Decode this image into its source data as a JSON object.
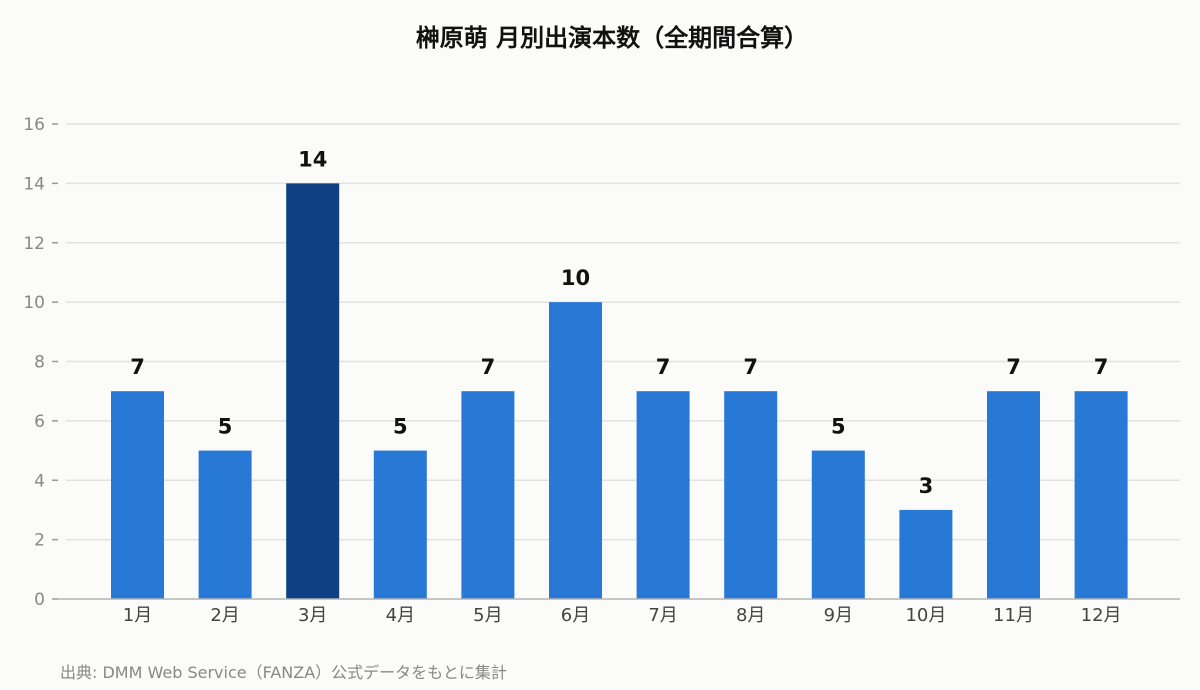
{
  "chart_data": {
    "type": "bar",
    "title": "榊原萌 月別出演本数（全期間合算）",
    "categories": [
      "1月",
      "2月",
      "3月",
      "4月",
      "5月",
      "6月",
      "7月",
      "8月",
      "9月",
      "10月",
      "11月",
      "12月"
    ],
    "values": [
      7,
      5,
      14,
      5,
      7,
      10,
      7,
      7,
      5,
      3,
      7,
      7
    ],
    "ylim": [
      0,
      16
    ],
    "yticks": [
      0,
      2,
      4,
      6,
      8,
      10,
      12,
      14,
      16
    ],
    "grid": true,
    "data_labels": true,
    "xlabel": "",
    "ylabel": "",
    "highlight_index": 2,
    "colors": {
      "bar": "#2878d6",
      "highlight": "#0f4083",
      "grid": "#e2e2e2",
      "axis": "#b4b4b4"
    }
  },
  "footer": {
    "source": "出典: DMM Web Service（FANZA）公式データをもとに集計"
  }
}
